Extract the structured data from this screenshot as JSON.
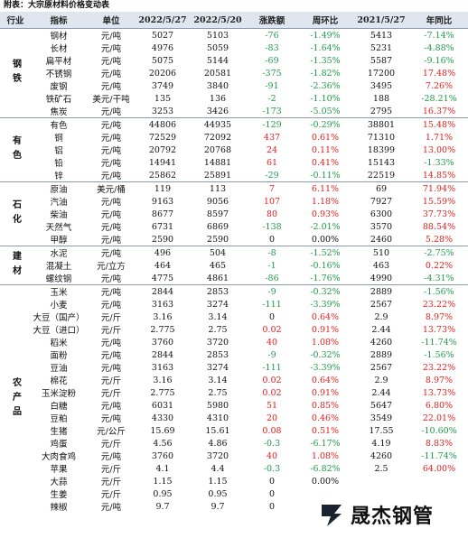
{
  "title": "附表：大宗原材料价格变动表",
  "header": [
    "行业",
    "指标",
    "单位",
    "2022/5/27",
    "2022/5/20",
    "涨跌额",
    "周环比",
    "2021/5/27",
    "年同比"
  ],
  "groups": [
    {
      "name": "钢铁",
      "rows": [
        [
          "钢材",
          "元/吨",
          "5027",
          "5103",
          "-76",
          "-1.49%",
          "5413",
          "-7.14%"
        ],
        [
          "长材",
          "元/吨",
          "4976",
          "5059",
          "-83",
          "-1.64%",
          "5231",
          "-4.88%"
        ],
        [
          "扁平材",
          "元/吨",
          "5075",
          "5144",
          "-69",
          "-1.35%",
          "5587",
          "-9.16%"
        ],
        [
          "不锈钢",
          "元/吨",
          "20206",
          "20581",
          "-375",
          "-1.82%",
          "17200",
          "17.48%"
        ],
        [
          "废钢",
          "元/吨",
          "3749",
          "3840",
          "-91",
          "-2.36%",
          "3495",
          "7.26%"
        ],
        [
          "铁矿石",
          "美元/干吨",
          "135",
          "136",
          "-2",
          "-1.10%",
          "188",
          "-28.21%"
        ],
        [
          "焦炭",
          "元/吨",
          "3253",
          "3426",
          "-173",
          "-5.05%",
          "2795",
          "16.37%"
        ]
      ]
    },
    {
      "name": "有色",
      "rows": [
        [
          "有色",
          "元/吨",
          "44806",
          "44935",
          "-129",
          "-0.29%",
          "38801",
          "15.48%"
        ],
        [
          "铜",
          "元/吨",
          "72529",
          "72092",
          "437",
          "0.61%",
          "71310",
          "1.71%"
        ],
        [
          "铝",
          "元/吨",
          "20792",
          "20768",
          "24",
          "0.11%",
          "18399",
          "13.00%"
        ],
        [
          "铅",
          "元/吨",
          "14941",
          "14881",
          "61",
          "0.41%",
          "15143",
          "-1.33%"
        ],
        [
          "锌",
          "元/吨",
          "25862",
          "25891",
          "-29",
          "-0.11%",
          "22519",
          "14.85%"
        ]
      ]
    },
    {
      "name": "石化",
      "rows": [
        [
          "原油",
          "美元/桶",
          "119",
          "113",
          "7",
          "6.11%",
          "69",
          "71.94%"
        ],
        [
          "汽油",
          "元/吨",
          "9163",
          "9056",
          "107",
          "1.18%",
          "7927",
          "15.59%"
        ],
        [
          "柴油",
          "元/吨",
          "8677",
          "8597",
          "80",
          "0.93%",
          "6300",
          "37.73%"
        ],
        [
          "天然气",
          "元/吨",
          "6731",
          "6869",
          "-138",
          "-2.01%",
          "3570",
          "88.54%"
        ],
        [
          "甲醇",
          "元/吨",
          "2590",
          "2590",
          "0",
          "0.00%",
          "2460",
          "5.28%"
        ]
      ]
    },
    {
      "name": "建材",
      "rows": [
        [
          "水泥",
          "元/吨",
          "496",
          "504",
          "-8",
          "-1.52%",
          "510",
          "-2.75%"
        ],
        [
          "混凝土",
          "元/立方",
          "464",
          "465",
          "-1",
          "-0.16%",
          "463",
          "0.22%"
        ],
        [
          "螺纹钢",
          "元/吨",
          "4775",
          "4861",
          "-86",
          "-1.76%",
          "4990",
          "-4.31%"
        ]
      ]
    },
    {
      "name": "农产品",
      "rows": [
        [
          "玉米",
          "元/吨",
          "2844",
          "2853",
          "-9",
          "-0.32%",
          "2889",
          "-1.56%"
        ],
        [
          "小麦",
          "元/吨",
          "3163",
          "3274",
          "-111",
          "-3.39%",
          "2567",
          "23.22%"
        ],
        [
          "大豆（国产）",
          "元/斤",
          "3.16",
          "3.14",
          "0",
          "0.64%",
          "2.9",
          "8.97%"
        ],
        [
          "大豆（进口）",
          "元/斤",
          "2.775",
          "2.75",
          "0.02",
          "0.91%",
          "2.44",
          "13.73%"
        ],
        [
          "稻米",
          "元/吨",
          "3760",
          "3720",
          "40",
          "1.08%",
          "4260",
          "-11.74%"
        ],
        [
          "面粉",
          "元/吨",
          "2844",
          "2853",
          "-9",
          "-0.32%",
          "2889",
          "-1.56%"
        ],
        [
          "豆油",
          "元/吨",
          "3163",
          "3274",
          "-111",
          "-3.39%",
          "2567",
          "23.22%"
        ],
        [
          "棉花",
          "元/斤",
          "3.16",
          "3.14",
          "0.02",
          "0.64%",
          "2.9",
          "8.97%"
        ],
        [
          "玉米淀粉",
          "元/斤",
          "2.775",
          "2.75",
          "0.02",
          "0.91%",
          "2.44",
          "13.73%"
        ],
        [
          "白糖",
          "元/吨",
          "6031",
          "5980",
          "51",
          "0.85%",
          "5647",
          "6.80%"
        ],
        [
          "豆粕",
          "元/吨",
          "4330",
          "4310",
          "20",
          "0.46%",
          "3549",
          "22.01%"
        ],
        [
          "生猪",
          "元/公斤",
          "15.69",
          "15.61",
          "0.08",
          "0.51%",
          "17.55",
          "-10.60%"
        ],
        [
          "鸡蛋",
          "元/斤",
          "4.56",
          "4.86",
          "-0.3",
          "-6.17%",
          "4.19",
          "8.83%"
        ],
        [
          "大肉食鸡",
          "元/吨",
          "3760",
          "3720",
          "40",
          "1.08%",
          "4260",
          "-11.74%"
        ],
        [
          "苹果",
          "元/斤",
          "4.1",
          "4.4",
          "-0.3",
          "-6.82%",
          "2.5",
          "64.00%"
        ],
        [
          "大蒜",
          "元/斤",
          "1.15",
          "1.15",
          "0",
          "0.00%"
        ],
        [
          "生姜",
          "元/斤",
          "0.95",
          "0.95",
          "0"
        ],
        [
          "辣椒",
          "元/吨",
          "9.7",
          "9.7",
          "0"
        ]
      ]
    }
  ],
  "logo": "晟杰钢管"
}
